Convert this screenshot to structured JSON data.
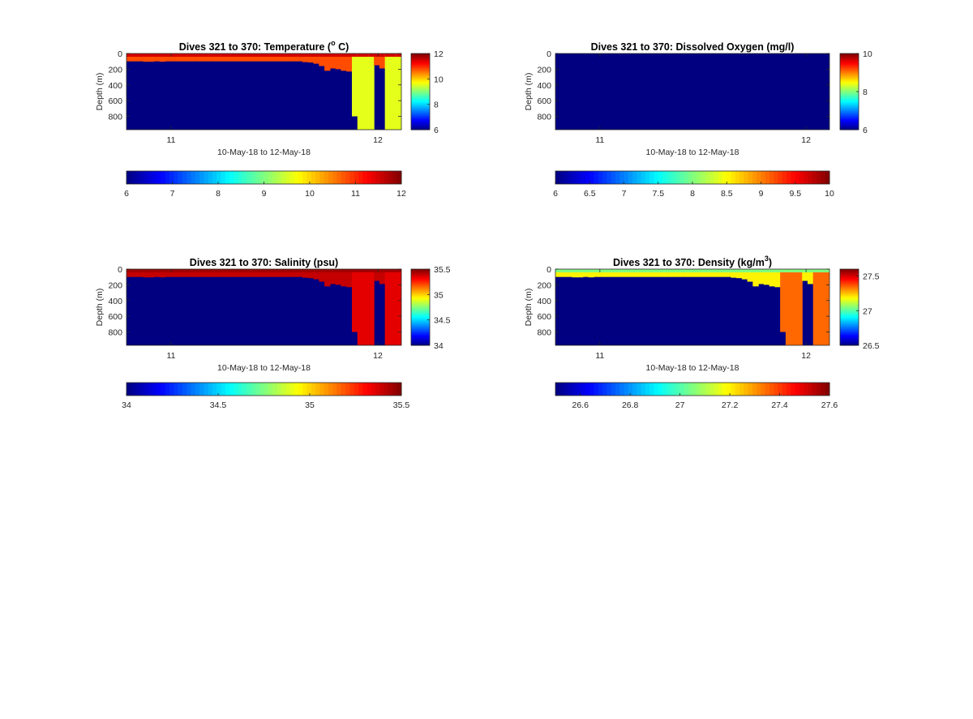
{
  "chart_data": [
    {
      "type": "heatmap",
      "title": "Dives 321 to 370: Temperature (",
      "title_sup": "o",
      "title_end": " C)",
      "xlabel": "10-May-18 to 12-May-18",
      "ylabel": "Depth (m)",
      "x_ticks": [
        "11",
        "12"
      ],
      "y_ticks": [
        "0",
        "200",
        "400",
        "600",
        "800"
      ],
      "ylim": [
        0,
        970
      ],
      "colormap": "jet",
      "clim": [
        6,
        12
      ],
      "fill_value": 6,
      "surface_value": 10.8,
      "deep_value": 9.6,
      "hot_top_value": 11.5,
      "side_colorbar_ticks": [
        "12",
        "10",
        "8",
        "6"
      ],
      "side_colorbar_values": [
        12,
        10,
        8,
        6
      ],
      "bottom_colorbar_ticks": [
        "6",
        "7",
        "8",
        "9",
        "10",
        "11",
        "12"
      ],
      "bottom_colorbar_values": [
        6,
        7,
        8,
        9,
        10,
        11,
        12
      ],
      "profile_depth_m": [
        100,
        100,
        100,
        105,
        105,
        100,
        105,
        100,
        100,
        100,
        100,
        100,
        100,
        100,
        100,
        100,
        100,
        100,
        100,
        100,
        100,
        100,
        100,
        100,
        100,
        100,
        100,
        100,
        100,
        100,
        100,
        100,
        110,
        115,
        130,
        160,
        220,
        190,
        200,
        220,
        230,
        800,
        970,
        970,
        970,
        150,
        190,
        970,
        970,
        970
      ]
    },
    {
      "type": "heatmap",
      "title": "Dives 321 to 370: Dissolved Oxygen (mg/l)",
      "xlabel": "10-May-18 to 12-May-18",
      "ylabel": "Depth (m)",
      "x_ticks": [
        "11",
        "12"
      ],
      "y_ticks": [
        "0",
        "200",
        "400",
        "600",
        "800"
      ],
      "ylim": [
        0,
        970
      ],
      "colormap": "jet",
      "clim": [
        6,
        10
      ],
      "fill_value": 6,
      "side_colorbar_ticks": [
        "10",
        "8",
        "6"
      ],
      "side_colorbar_values": [
        10,
        8,
        6
      ],
      "bottom_colorbar_ticks": [
        "6",
        "6.5",
        "7",
        "7.5",
        "8",
        "8.5",
        "9",
        "9.5",
        "10"
      ],
      "bottom_colorbar_values": [
        6,
        6.5,
        7,
        7.5,
        8,
        8.5,
        9,
        9.5,
        10
      ],
      "profile_depth_m": []
    },
    {
      "type": "heatmap",
      "title": "Dives 321 to 370: Salinity (psu)",
      "xlabel": "10-May-18 to 12-May-18",
      "ylabel": "Depth (m)",
      "x_ticks": [
        "11",
        "12"
      ],
      "y_ticks": [
        "0",
        "200",
        "400",
        "600",
        "800"
      ],
      "ylim": [
        0,
        970
      ],
      "colormap": "jet",
      "clim": [
        34,
        35.5
      ],
      "fill_value": 34,
      "surface_value": 35.4,
      "deep_value": 35.35,
      "hot_top_value": 35.45,
      "side_colorbar_ticks": [
        "35.5",
        "35",
        "34.5",
        "34"
      ],
      "side_colorbar_values": [
        35.5,
        35,
        34.5,
        34
      ],
      "bottom_colorbar_ticks": [
        "34",
        "34.5",
        "35",
        "35.5"
      ],
      "bottom_colorbar_values": [
        34,
        34.5,
        35,
        35.5
      ],
      "profile_depth_m": [
        100,
        100,
        100,
        105,
        105,
        100,
        105,
        100,
        100,
        100,
        100,
        100,
        100,
        100,
        100,
        100,
        100,
        100,
        100,
        100,
        100,
        100,
        100,
        100,
        100,
        100,
        100,
        100,
        100,
        100,
        100,
        100,
        110,
        115,
        130,
        160,
        220,
        190,
        200,
        220,
        230,
        800,
        970,
        970,
        970,
        150,
        190,
        970,
        970,
        970
      ]
    },
    {
      "type": "heatmap",
      "title": "Dives 321 to 370: Density (kg/m",
      "title_sup": "3",
      "title_end": ")",
      "xlabel": "10-May-18 to 12-May-18",
      "ylabel": "Depth (m)",
      "x_ticks": [
        "11",
        "12"
      ],
      "y_ticks": [
        "0",
        "200",
        "400",
        "600",
        "800"
      ],
      "ylim": [
        0,
        970
      ],
      "colormap": "jet",
      "clim": [
        26.5,
        27.6
      ],
      "fill_value": 26.5,
      "surface_value": 27.2,
      "deep_value": 27.35,
      "hot_top_value": 27.05,
      "side_colorbar_ticks": [
        "27.5",
        "27",
        "26.5"
      ],
      "side_colorbar_values": [
        27.5,
        27,
        26.5
      ],
      "bottom_colorbar_ticks": [
        "26.6",
        "26.8",
        "27",
        "27.2",
        "27.4",
        "27.6"
      ],
      "bottom_colorbar_values": [
        26.6,
        26.8,
        27,
        27.2,
        27.4,
        27.6
      ],
      "profile_depth_m": [
        100,
        100,
        100,
        105,
        105,
        100,
        105,
        100,
        100,
        100,
        100,
        100,
        100,
        100,
        100,
        100,
        100,
        100,
        100,
        100,
        100,
        100,
        100,
        100,
        100,
        100,
        100,
        100,
        100,
        100,
        100,
        100,
        110,
        115,
        130,
        160,
        220,
        190,
        200,
        220,
        230,
        800,
        970,
        970,
        970,
        150,
        190,
        970,
        970,
        970
      ]
    }
  ]
}
